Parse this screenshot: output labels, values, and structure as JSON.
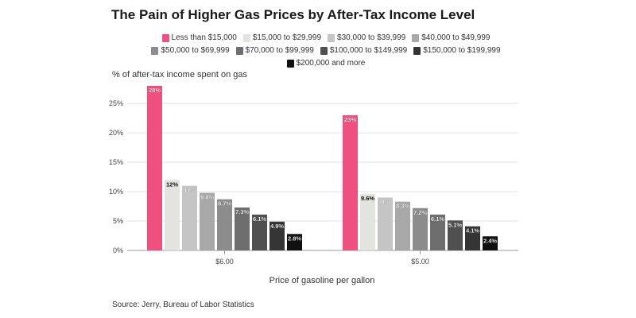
{
  "chart_data": {
    "type": "bar",
    "title": "The Pain of Higher Gas Prices by After-Tax Income Level",
    "ylabel": "% of after-tax income spent on gas",
    "xlabel": "Price of gasoline per gallon",
    "source": "Source: Jerry, Bureau of Labor Statistics",
    "categories": [
      "$6.00",
      "$5.00"
    ],
    "ylim": [
      0,
      28
    ],
    "yticks": [
      0,
      5,
      10,
      15,
      20,
      25
    ],
    "ytick_labels": [
      "0%",
      "5%",
      "10%",
      "15%",
      "20%",
      "25%"
    ],
    "grid": true,
    "legend_position": "top",
    "series": [
      {
        "name": "Less than $15,000",
        "color": "#f0507f",
        "values": [
          28,
          23
        ],
        "labels": [
          "28%",
          "23%"
        ]
      },
      {
        "name": "$15,000 to $29,999",
        "color": "#e3e3df",
        "values": [
          12,
          9.6
        ],
        "labels": [
          "12%",
          "9.6%"
        ]
      },
      {
        "name": "$30,000 to $39,999",
        "color": "#c5c5c5",
        "values": [
          11,
          9
        ],
        "labels": [
          "11%",
          "9%"
        ]
      },
      {
        "name": "$40,000 to $49,999",
        "color": "#a8a8a8",
        "values": [
          9.8,
          8.3
        ],
        "labels": [
          "9.8%",
          "8.3%"
        ]
      },
      {
        "name": "$50,000 to $69,999",
        "color": "#8c8c8c",
        "values": [
          8.7,
          7.2
        ],
        "labels": [
          "8.7%",
          "7.2%"
        ]
      },
      {
        "name": "$70,000 to $99,999",
        "color": "#6e6e6e",
        "values": [
          7.3,
          6.1
        ],
        "labels": [
          "7.3%",
          "6.1%"
        ]
      },
      {
        "name": "$100,000 to $149,999",
        "color": "#505050",
        "values": [
          6.1,
          5.1
        ],
        "labels": [
          "6.1%",
          "5.1%"
        ]
      },
      {
        "name": "$150,000 to $199,999",
        "color": "#353535",
        "values": [
          4.9,
          4.1
        ],
        "labels": [
          "4.9%",
          "4.1%"
        ]
      },
      {
        "name": "$200,000 and more",
        "color": "#111111",
        "values": [
          2.8,
          2.4
        ],
        "labels": [
          "2.8%",
          "2.4%"
        ]
      }
    ]
  }
}
